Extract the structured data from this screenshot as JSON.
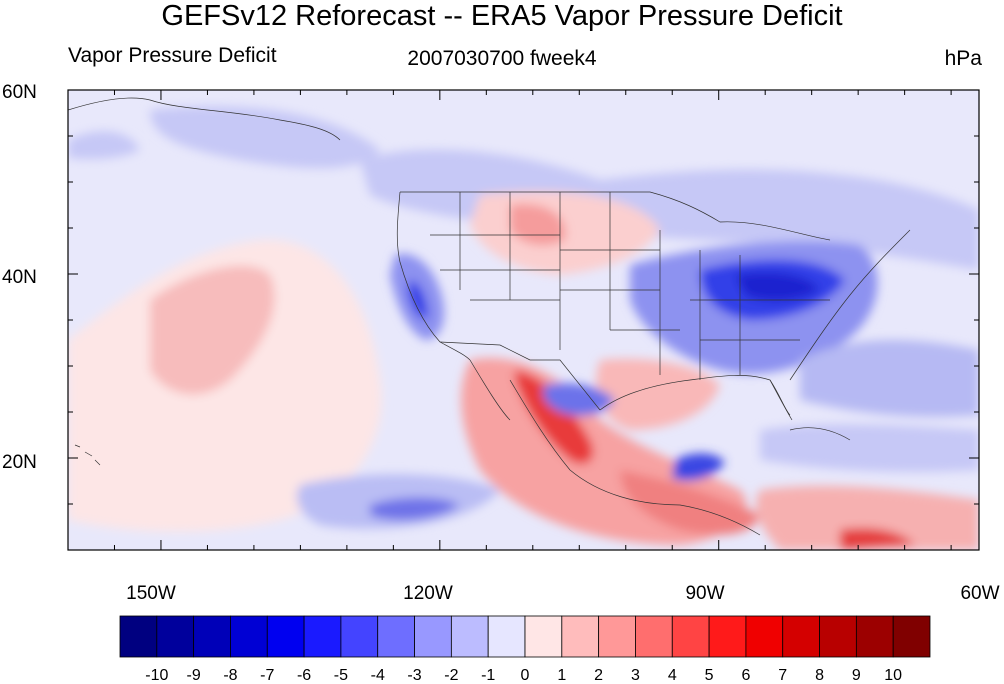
{
  "title": "GEFSv12 Reforecast -- ERA5 Vapor Pressure Deficit",
  "subtitle_left": "Vapor Pressure Deficit",
  "subtitle_center": "2007030700 fweek4",
  "subtitle_right": "hPa",
  "lat_labels": [
    "60N",
    "40N",
    "20N"
  ],
  "lon_labels": [
    "150W",
    "120W",
    "90W",
    "60W"
  ],
  "colorbar": {
    "labels": [
      "-10",
      "-9",
      "-8",
      "-7",
      "-6",
      "-5",
      "-4",
      "-3",
      "-2",
      "-1",
      "0",
      "1",
      "2",
      "3",
      "4",
      "5",
      "6",
      "7",
      "8",
      "9",
      "10"
    ],
    "colors": [
      "#000080",
      "#00009c",
      "#0000b8",
      "#0000d4",
      "#0000f0",
      "#1a1aff",
      "#4444ff",
      "#6e6eff",
      "#9898ff",
      "#bcbcff",
      "#e6e6ff",
      "#ffe6e6",
      "#ffbcbc",
      "#ff9898",
      "#ff6e6e",
      "#ff4444",
      "#ff1a1a",
      "#f00000",
      "#d40000",
      "#b80000",
      "#9c0000",
      "#800000"
    ]
  },
  "map": {
    "lon_range": [
      -160,
      -62
    ],
    "lat_range": [
      10,
      60
    ],
    "background_color": "#e8e8fb"
  }
}
